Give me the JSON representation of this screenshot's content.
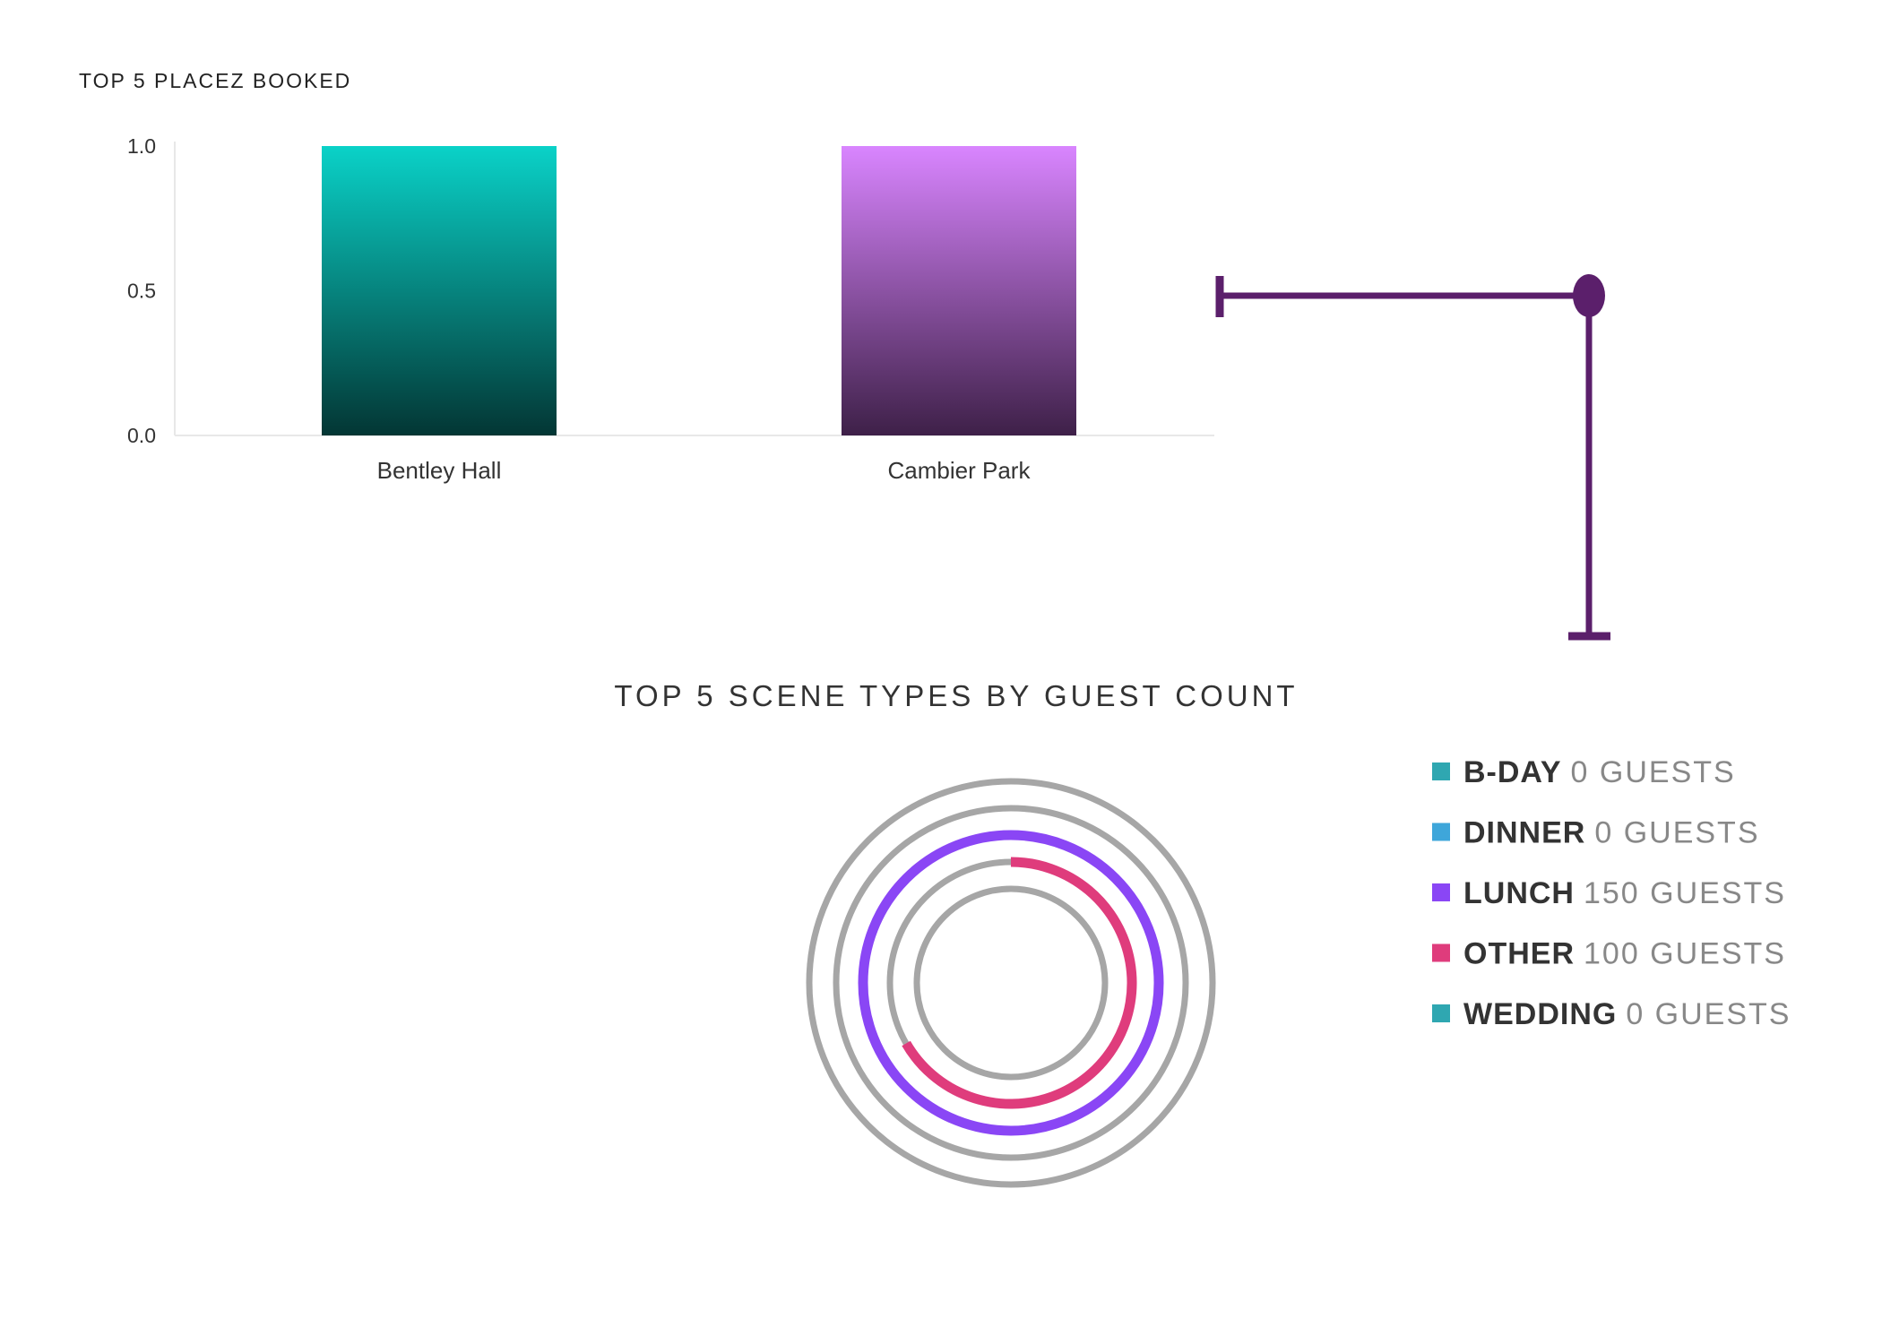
{
  "chart_data": [
    {
      "type": "bar",
      "title": "TOP 5 PLACEZ BOOKED",
      "categories": [
        "Bentley Hall",
        "Cambier Park"
      ],
      "values": [
        1.0,
        1.0
      ],
      "ylim": [
        0,
        1.0
      ],
      "yticks": [
        "1.0",
        "0.5",
        "0.0"
      ],
      "xlabel": "",
      "ylabel": "",
      "grid": false,
      "colors": [
        {
          "top": "#0ad2c8",
          "bottom": "#033634"
        },
        {
          "top": "#d985ff",
          "bottom": "#3e2048"
        }
      ]
    },
    {
      "type": "radial-bar",
      "title": "TOP 5 SCENE TYPES BY GUEST COUNT",
      "max": 150,
      "legend_position": "right",
      "series": [
        {
          "name": "B-DAY",
          "value": 0,
          "label": "0 GUESTS",
          "color": "#2fa7b1"
        },
        {
          "name": "DINNER",
          "value": 0,
          "label": "0 GUESTS",
          "color": "#3ea6da"
        },
        {
          "name": "LUNCH",
          "value": 150,
          "label": "150 GUESTS",
          "color": "#8a46f5"
        },
        {
          "name": "OTHER",
          "value": 100,
          "label": "100 GUESTS",
          "color": "#df3c7c"
        },
        {
          "name": "WEDDING",
          "value": 0,
          "label": "0 GUESTS",
          "color": "#2fa7b1"
        }
      ],
      "track_color": "#a6a6a6"
    }
  ],
  "connector": {
    "color": "#5b1f6b"
  }
}
